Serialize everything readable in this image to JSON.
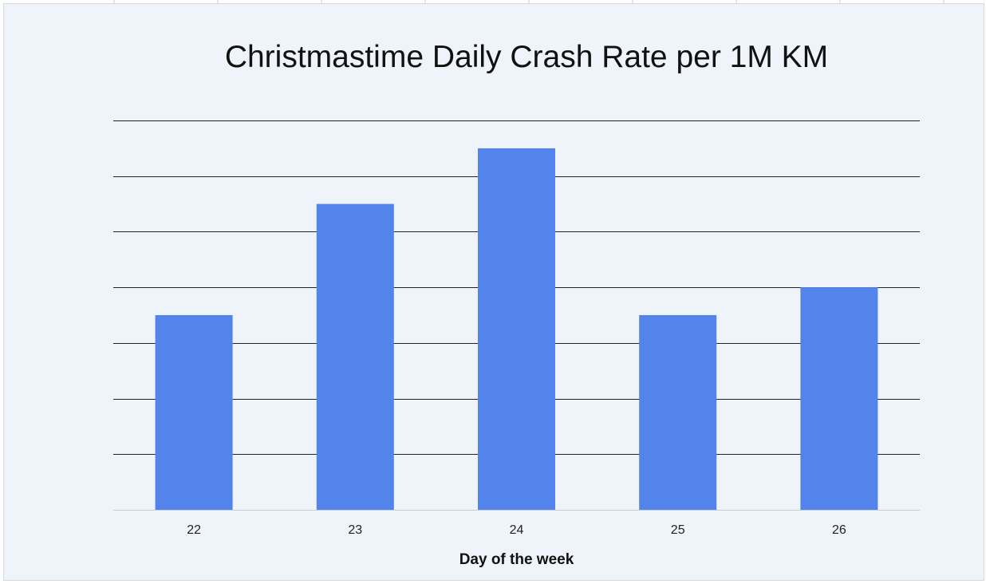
{
  "chart_data": {
    "type": "bar",
    "title": "Christmastime Daily Crash Rate per 1M KM",
    "xlabel": "Day of the week",
    "ylabel": "",
    "categories": [
      "22",
      "23",
      "24",
      "25",
      "26"
    ],
    "values": [
      3.5,
      5.5,
      6.5,
      3.5,
      4.0
    ],
    "ylim": [
      0,
      7
    ],
    "y_gridlines": [
      1,
      2,
      3,
      4,
      5,
      6,
      7
    ],
    "y_tick_labels_shown": false,
    "grid": true,
    "bar_color": "#5284ec",
    "gridline_color": "#222222",
    "background_color": "#eef4fa"
  }
}
